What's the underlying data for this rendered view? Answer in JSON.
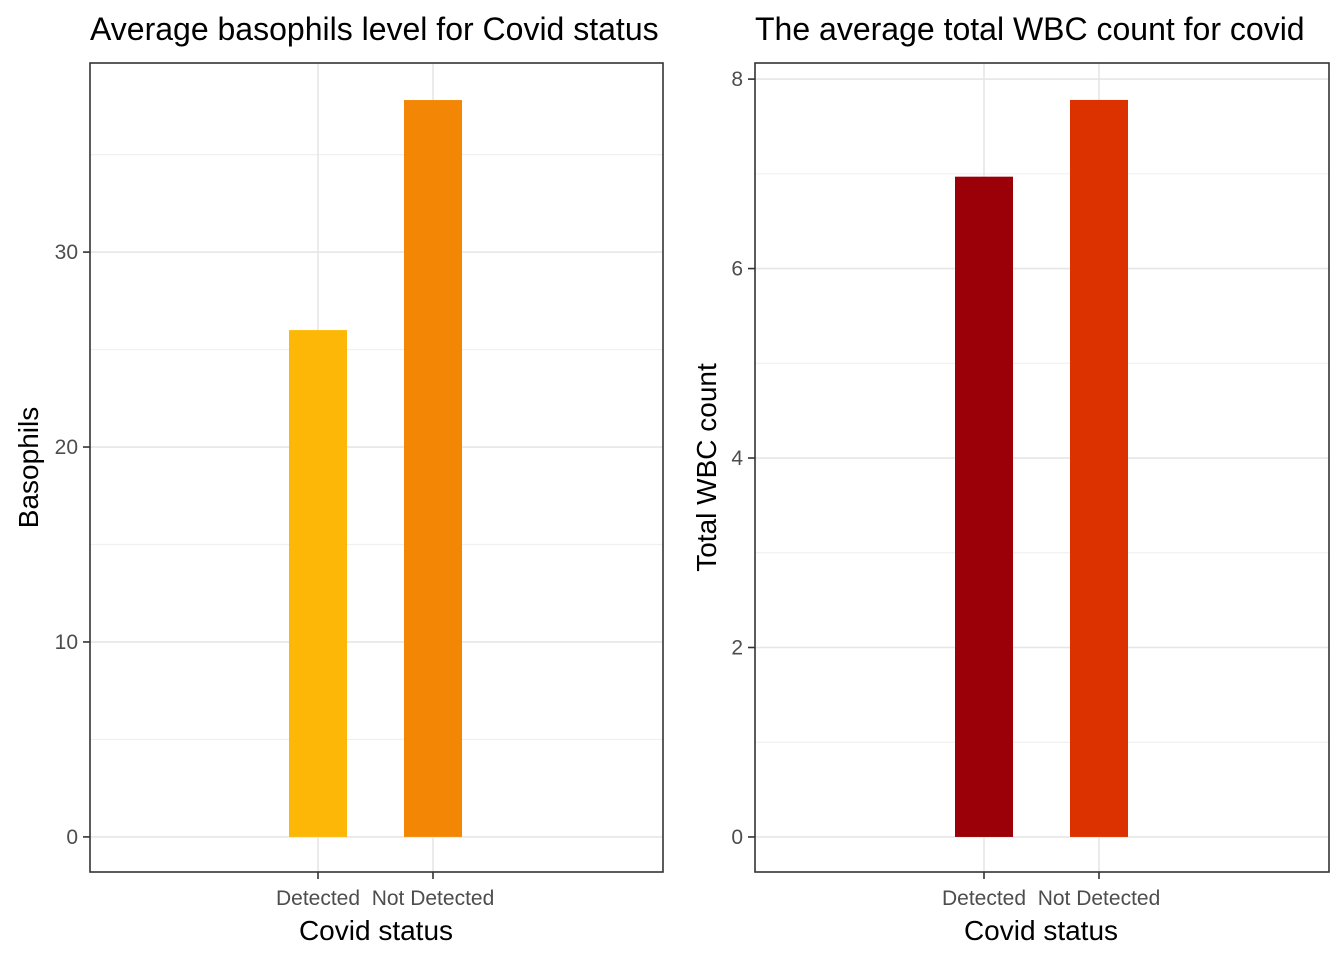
{
  "chart_data": [
    {
      "type": "bar",
      "title": "Average basophils level for Covid status",
      "xlabel": "Covid status",
      "ylabel": "Basophils",
      "categories": [
        "Detected",
        "Not Detected"
      ],
      "values": [
        26.0,
        37.8
      ],
      "colors": [
        "#FDB706",
        "#F38705"
      ],
      "ylim": [
        -1.8,
        39.7
      ],
      "yticks": [
        0,
        10,
        20,
        30
      ],
      "ytick_labels": [
        "0",
        "10",
        "20",
        "30"
      ],
      "grid": true
    },
    {
      "type": "bar",
      "title": "The average total WBC count for covid",
      "xlabel": "Covid status",
      "ylabel": "Total WBC count",
      "categories": [
        "Detected",
        "Not Detected"
      ],
      "values": [
        6.97,
        7.78
      ],
      "colors": [
        "#9B0008",
        "#DB3200"
      ],
      "ylim": [
        -0.37,
        8.17
      ],
      "yticks": [
        0,
        2,
        4,
        6,
        8
      ],
      "ytick_labels": [
        "0",
        "2",
        "4",
        "6",
        "8"
      ],
      "grid": true
    }
  ]
}
